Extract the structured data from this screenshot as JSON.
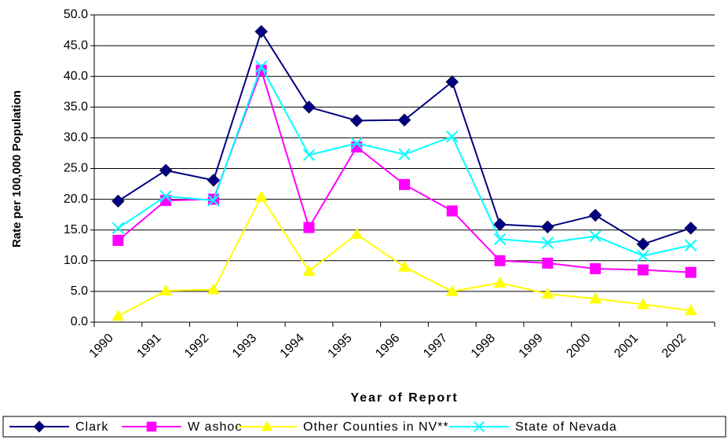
{
  "chart_data": {
    "type": "line",
    "x_label": "Year of Report",
    "y_label": "Rate per 100,000 Population",
    "categories": [
      "1990",
      "1991",
      "1992",
      "1993",
      "1994",
      "1995",
      "1996",
      "1997",
      "1998",
      "1999",
      "2000",
      "2001",
      "2002"
    ],
    "series": [
      {
        "name": "Clark",
        "color": "#000080",
        "marker": "diamond",
        "values": [
          19.7,
          24.7,
          23.1,
          47.3,
          35.0,
          32.8,
          32.9,
          39.1,
          15.9,
          15.5,
          17.4,
          12.7,
          15.3
        ]
      },
      {
        "name": "W ashoe",
        "color": "#ff00ff",
        "marker": "square",
        "values": [
          13.3,
          19.8,
          20.0,
          41.0,
          15.4,
          28.5,
          22.4,
          18.1,
          10.0,
          9.6,
          8.7,
          8.5,
          8.1
        ]
      },
      {
        "name": "Other Counties in NV**",
        "color": "#ffff00",
        "marker": "triangle",
        "values": [
          1.0,
          5.1,
          5.3,
          20.4,
          8.3,
          14.3,
          9.0,
          5.0,
          6.4,
          4.6,
          3.8,
          2.9,
          1.9
        ]
      },
      {
        "name": "State of Nevada",
        "color": "#00ffff",
        "marker": "x",
        "values": [
          15.3,
          20.5,
          19.8,
          41.6,
          27.2,
          29.1,
          27.3,
          30.2,
          13.5,
          12.9,
          14.0,
          10.8,
          12.5
        ]
      }
    ],
    "ylim": [
      0,
      50
    ],
    "yticks": [
      {
        "value": 0,
        "label": "0.0"
      },
      {
        "value": 5,
        "label": "5.0"
      },
      {
        "value": 10,
        "label": "10.0"
      },
      {
        "value": 15,
        "label": "15.0"
      },
      {
        "value": 20,
        "label": "20.0"
      },
      {
        "value": 25,
        "label": "25.0"
      },
      {
        "value": 30,
        "label": "30.0"
      },
      {
        "value": 35,
        "label": "35.0"
      },
      {
        "value": 40,
        "label": "40.0"
      },
      {
        "value": 45,
        "label": "45.0"
      },
      {
        "value": 50,
        "label": "50.0"
      }
    ],
    "grid": true,
    "legend": "bottom"
  }
}
